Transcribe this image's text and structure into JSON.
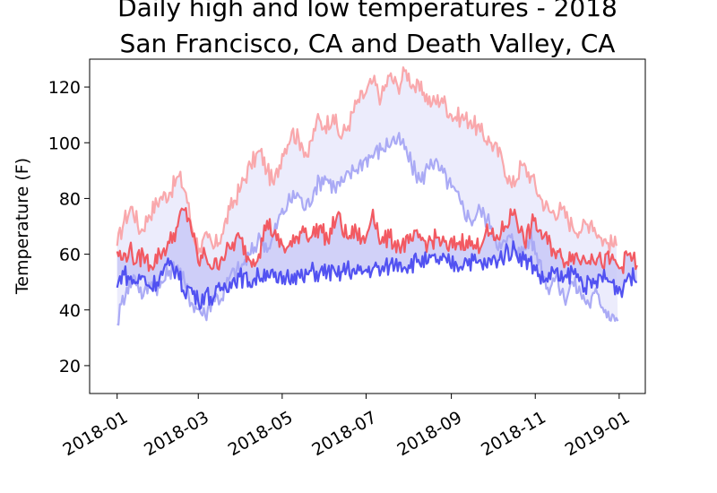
{
  "chart_data": {
    "type": "line",
    "title_lines": [
      "Daily high and low temperatures - 2018",
      "San Francisco, CA and Death Valley, CA"
    ],
    "ylabel": "Temperature (F)",
    "xlabel": "",
    "xlim": [
      "2017-12-12",
      "2019-01-20"
    ],
    "ylim": [
      10,
      130
    ],
    "y_ticks": [
      20,
      40,
      60,
      80,
      100,
      120
    ],
    "x_ticks": [
      "2018-01",
      "2018-03",
      "2018-05",
      "2018-07",
      "2018-09",
      "2018-11",
      "2019-01"
    ],
    "grid": false,
    "legend": "none",
    "series": [
      {
        "role": "death-valley-high",
        "color": "#f9a8ac",
        "opacity": 1,
        "points": [
          [
            "2018-01-01",
            63
          ],
          [
            "2018-01-06",
            72
          ],
          [
            "2018-01-12",
            77
          ],
          [
            "2018-01-18",
            68
          ],
          [
            "2018-01-24",
            74
          ],
          [
            "2018-02-01",
            80
          ],
          [
            "2018-02-08",
            82
          ],
          [
            "2018-02-15",
            88
          ],
          [
            "2018-02-20",
            82
          ],
          [
            "2018-02-25",
            68
          ],
          [
            "2018-03-02",
            62
          ],
          [
            "2018-03-08",
            66
          ],
          [
            "2018-03-12",
            62
          ],
          [
            "2018-03-18",
            67
          ],
          [
            "2018-03-24",
            76
          ],
          [
            "2018-04-01",
            84
          ],
          [
            "2018-04-08",
            92
          ],
          [
            "2018-04-15",
            97
          ],
          [
            "2018-04-20",
            90
          ],
          [
            "2018-04-25",
            85
          ],
          [
            "2018-05-01",
            96
          ],
          [
            "2018-05-08",
            104
          ],
          [
            "2018-05-15",
            100
          ],
          [
            "2018-05-20",
            95
          ],
          [
            "2018-05-26",
            108
          ],
          [
            "2018-06-01",
            106
          ],
          [
            "2018-06-07",
            110
          ],
          [
            "2018-06-12",
            102
          ],
          [
            "2018-06-18",
            106
          ],
          [
            "2018-06-24",
            114
          ],
          [
            "2018-07-01",
            118
          ],
          [
            "2018-07-06",
            122
          ],
          [
            "2018-07-12",
            116
          ],
          [
            "2018-07-18",
            124
          ],
          [
            "2018-07-24",
            120
          ],
          [
            "2018-07-30",
            126
          ],
          [
            "2018-08-05",
            120
          ],
          [
            "2018-08-12",
            118
          ],
          [
            "2018-08-18",
            114
          ],
          [
            "2018-08-25",
            116
          ],
          [
            "2018-09-01",
            110
          ],
          [
            "2018-09-08",
            109
          ],
          [
            "2018-09-15",
            108
          ],
          [
            "2018-09-22",
            104
          ],
          [
            "2018-09-30",
            100
          ],
          [
            "2018-10-08",
            94
          ],
          [
            "2018-10-15",
            84
          ],
          [
            "2018-10-22",
            92
          ],
          [
            "2018-10-29",
            88
          ],
          [
            "2018-11-05",
            80
          ],
          [
            "2018-11-12",
            75
          ],
          [
            "2018-11-20",
            76
          ],
          [
            "2018-11-28",
            70
          ],
          [
            "2018-12-05",
            69
          ],
          [
            "2018-12-12",
            72
          ],
          [
            "2018-12-18",
            66
          ],
          [
            "2018-12-24",
            64
          ],
          [
            "2018-12-30",
            63
          ]
        ]
      },
      {
        "role": "death-valley-low",
        "color": "#aaaaf5",
        "opacity": 1,
        "points": [
          [
            "2018-01-01",
            35
          ],
          [
            "2018-01-04",
            42
          ],
          [
            "2018-01-08",
            48
          ],
          [
            "2018-01-14",
            52
          ],
          [
            "2018-01-20",
            45
          ],
          [
            "2018-01-26",
            50
          ],
          [
            "2018-02-01",
            48
          ],
          [
            "2018-02-08",
            54
          ],
          [
            "2018-02-14",
            56
          ],
          [
            "2018-02-20",
            48
          ],
          [
            "2018-02-25",
            42
          ],
          [
            "2018-03-02",
            40
          ],
          [
            "2018-03-06",
            38
          ],
          [
            "2018-03-12",
            45
          ],
          [
            "2018-03-18",
            44
          ],
          [
            "2018-03-24",
            52
          ],
          [
            "2018-04-01",
            55
          ],
          [
            "2018-04-08",
            60
          ],
          [
            "2018-04-15",
            66
          ],
          [
            "2018-04-22",
            62
          ],
          [
            "2018-04-28",
            72
          ],
          [
            "2018-05-05",
            78
          ],
          [
            "2018-05-12",
            82
          ],
          [
            "2018-05-18",
            76
          ],
          [
            "2018-05-25",
            84
          ],
          [
            "2018-06-01",
            88
          ],
          [
            "2018-06-08",
            84
          ],
          [
            "2018-06-15",
            86
          ],
          [
            "2018-06-22",
            90
          ],
          [
            "2018-06-30",
            94
          ],
          [
            "2018-07-07",
            96
          ],
          [
            "2018-07-13",
            98
          ],
          [
            "2018-07-20",
            101
          ],
          [
            "2018-07-27",
            100
          ],
          [
            "2018-08-03",
            92
          ],
          [
            "2018-08-10",
            86
          ],
          [
            "2018-08-17",
            94
          ],
          [
            "2018-08-24",
            90
          ],
          [
            "2018-09-01",
            84
          ],
          [
            "2018-09-08",
            78
          ],
          [
            "2018-09-15",
            72
          ],
          [
            "2018-09-22",
            76
          ],
          [
            "2018-09-30",
            70
          ],
          [
            "2018-10-07",
            62
          ],
          [
            "2018-10-14",
            66
          ],
          [
            "2018-10-21",
            60
          ],
          [
            "2018-10-28",
            66
          ],
          [
            "2018-11-04",
            58
          ],
          [
            "2018-11-10",
            48
          ],
          [
            "2018-11-16",
            52
          ],
          [
            "2018-11-22",
            44
          ],
          [
            "2018-11-28",
            50
          ],
          [
            "2018-12-04",
            46
          ],
          [
            "2018-12-10",
            42
          ],
          [
            "2018-12-16",
            46
          ],
          [
            "2018-12-22",
            40
          ],
          [
            "2018-12-28",
            38
          ],
          [
            "2018-12-31",
            36
          ]
        ]
      },
      {
        "role": "san-francisco-high",
        "color": "#f2525a",
        "opacity": 0.95,
        "points": [
          [
            "2018-01-01",
            61
          ],
          [
            "2018-01-05",
            58
          ],
          [
            "2018-01-10",
            62
          ],
          [
            "2018-01-15",
            57
          ],
          [
            "2018-01-20",
            60
          ],
          [
            "2018-01-25",
            56
          ],
          [
            "2018-02-01",
            60
          ],
          [
            "2018-02-08",
            64
          ],
          [
            "2018-02-14",
            70
          ],
          [
            "2018-02-18",
            76
          ],
          [
            "2018-02-23",
            72
          ],
          [
            "2018-03-01",
            57
          ],
          [
            "2018-03-06",
            60
          ],
          [
            "2018-03-12",
            55
          ],
          [
            "2018-03-18",
            59
          ],
          [
            "2018-03-24",
            62
          ],
          [
            "2018-03-31",
            66
          ],
          [
            "2018-04-07",
            58
          ],
          [
            "2018-04-14",
            60
          ],
          [
            "2018-04-20",
            72
          ],
          [
            "2018-04-27",
            65
          ],
          [
            "2018-05-04",
            62
          ],
          [
            "2018-05-10",
            64
          ],
          [
            "2018-05-16",
            70
          ],
          [
            "2018-05-22",
            66
          ],
          [
            "2018-05-28",
            70
          ],
          [
            "2018-06-03",
            65
          ],
          [
            "2018-06-10",
            74
          ],
          [
            "2018-06-17",
            66
          ],
          [
            "2018-06-24",
            68
          ],
          [
            "2018-06-30",
            64
          ],
          [
            "2018-07-06",
            76
          ],
          [
            "2018-07-12",
            64
          ],
          [
            "2018-07-18",
            66
          ],
          [
            "2018-07-25",
            63
          ],
          [
            "2018-08-01",
            64
          ],
          [
            "2018-08-08",
            66
          ],
          [
            "2018-08-15",
            64
          ],
          [
            "2018-08-22",
            66
          ],
          [
            "2018-08-29",
            62
          ],
          [
            "2018-09-05",
            64
          ],
          [
            "2018-09-12",
            65
          ],
          [
            "2018-09-19",
            62
          ],
          [
            "2018-09-26",
            68
          ],
          [
            "2018-10-03",
            65
          ],
          [
            "2018-10-10",
            70
          ],
          [
            "2018-10-17",
            76
          ],
          [
            "2018-10-24",
            64
          ],
          [
            "2018-10-31",
            72
          ],
          [
            "2018-11-07",
            66
          ],
          [
            "2018-11-14",
            62
          ],
          [
            "2018-11-21",
            58
          ],
          [
            "2018-11-28",
            60
          ],
          [
            "2018-12-05",
            58
          ],
          [
            "2018-12-12",
            60
          ],
          [
            "2018-12-19",
            57
          ],
          [
            "2018-12-26",
            58
          ],
          [
            "2019-01-02",
            55
          ],
          [
            "2019-01-08",
            60
          ],
          [
            "2019-01-14",
            56
          ]
        ]
      },
      {
        "role": "san-francisco-low",
        "color": "#4a4af0",
        "opacity": 0.95,
        "points": [
          [
            "2018-01-01",
            48
          ],
          [
            "2018-01-05",
            54
          ],
          [
            "2018-01-10",
            51
          ],
          [
            "2018-01-15",
            50
          ],
          [
            "2018-01-20",
            52
          ],
          [
            "2018-01-25",
            48
          ],
          [
            "2018-02-01",
            52
          ],
          [
            "2018-02-08",
            56
          ],
          [
            "2018-02-14",
            54
          ],
          [
            "2018-02-18",
            47
          ],
          [
            "2018-02-23",
            48
          ],
          [
            "2018-03-01",
            43
          ],
          [
            "2018-03-06",
            46
          ],
          [
            "2018-03-12",
            44
          ],
          [
            "2018-03-18",
            48
          ],
          [
            "2018-03-24",
            50
          ],
          [
            "2018-03-31",
            52
          ],
          [
            "2018-04-07",
            50
          ],
          [
            "2018-04-14",
            52
          ],
          [
            "2018-04-20",
            54
          ],
          [
            "2018-04-27",
            50
          ],
          [
            "2018-05-04",
            52
          ],
          [
            "2018-05-10",
            53
          ],
          [
            "2018-05-16",
            51
          ],
          [
            "2018-05-22",
            54
          ],
          [
            "2018-05-28",
            53
          ],
          [
            "2018-06-03",
            54
          ],
          [
            "2018-06-10",
            52
          ],
          [
            "2018-06-17",
            55
          ],
          [
            "2018-06-24",
            53
          ],
          [
            "2018-06-30",
            54
          ],
          [
            "2018-07-06",
            55
          ],
          [
            "2018-07-12",
            54
          ],
          [
            "2018-07-18",
            56
          ],
          [
            "2018-07-25",
            57
          ],
          [
            "2018-08-01",
            56
          ],
          [
            "2018-08-08",
            58
          ],
          [
            "2018-08-15",
            57
          ],
          [
            "2018-08-22",
            58
          ],
          [
            "2018-08-29",
            57
          ],
          [
            "2018-09-05",
            56
          ],
          [
            "2018-09-12",
            58
          ],
          [
            "2018-09-19",
            57
          ],
          [
            "2018-09-26",
            56
          ],
          [
            "2018-10-03",
            58
          ],
          [
            "2018-10-10",
            60
          ],
          [
            "2018-10-17",
            62
          ],
          [
            "2018-10-24",
            58
          ],
          [
            "2018-10-31",
            56
          ],
          [
            "2018-11-07",
            50
          ],
          [
            "2018-11-14",
            54
          ],
          [
            "2018-11-21",
            50
          ],
          [
            "2018-11-28",
            54
          ],
          [
            "2018-12-05",
            50
          ],
          [
            "2018-12-12",
            48
          ],
          [
            "2018-12-19",
            52
          ],
          [
            "2018-12-26",
            50
          ],
          [
            "2019-01-02",
            47
          ],
          [
            "2019-01-08",
            53
          ],
          [
            "2019-01-14",
            50
          ]
        ]
      }
    ],
    "fills": [
      {
        "between": [
          "death-valley-high",
          "death-valley-low"
        ],
        "color": "#ececfc"
      },
      {
        "between": [
          "san-francisco-high",
          "san-francisco-low"
        ],
        "color": "#c9c9f7",
        "opacity": 0.85
      }
    ]
  }
}
